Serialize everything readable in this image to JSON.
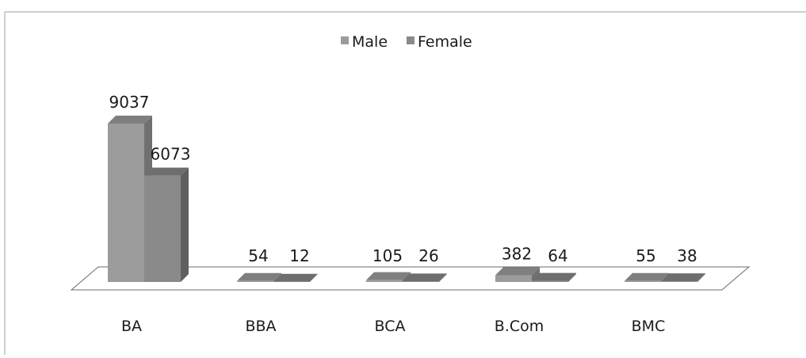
{
  "chart_data": {
    "type": "bar",
    "title": "",
    "xlabel": "",
    "ylabel": "",
    "categories": [
      "BA",
      "BBA",
      "BCA",
      "B.Com",
      "BMC"
    ],
    "series": [
      {
        "name": "Male",
        "values": [
          9037,
          54,
          105,
          382,
          55
        ]
      },
      {
        "name": "Female",
        "values": [
          6073,
          12,
          26,
          64,
          38
        ]
      }
    ],
    "ylim": [
      0,
      9037
    ],
    "grid": false,
    "legend_position": "top",
    "colors": {
      "male_front": "#9b9b9b",
      "male_side": "#707070",
      "male_top": "#7f7f7f",
      "female_front": "#8a8a8a",
      "female_side": "#5f5f5f",
      "female_top": "#6e6e6e",
      "floor_stroke": "#6b6b6b",
      "border": "#bfbfbf"
    }
  }
}
